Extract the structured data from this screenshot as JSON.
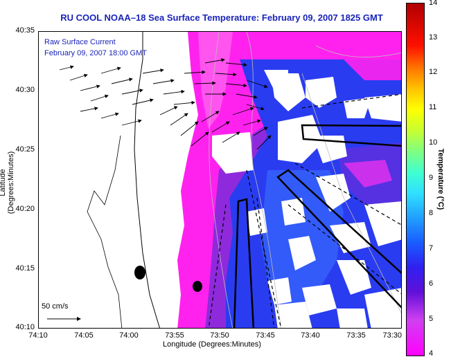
{
  "title": "RU COOL  NOAA–18  Sea Surface Temperature:  February 09, 2007 1825 GMT",
  "overlay": {
    "line1": "Raw Surface Current",
    "line2": "February 09, 2007 18:00 GMT"
  },
  "axes": {
    "xlabel": "Longitude (Degrees:Minutes)",
    "ylabel": "Latitude (Degrees:Minutes)",
    "xticks": [
      "74:10",
      "74:05",
      "74:00",
      "73:55",
      "73:50",
      "73:45",
      "73:40",
      "73:35",
      "73:30"
    ],
    "yticks": [
      "40:35",
      "40:30",
      "40:25",
      "40:20",
      "40:15",
      "40:10"
    ]
  },
  "scale_label": "50 cm/s",
  "colorbar": {
    "label": "Temperature (°C)",
    "ticks": [
      "14",
      "13",
      "12",
      "11",
      "10",
      "9",
      "8",
      "7",
      "6",
      "5",
      "4"
    ]
  },
  "colors": {
    "title": "#1a24b8",
    "warm": "#ff22ee",
    "cold": "#2a3cf0",
    "mid": "#7a2cd8"
  }
}
